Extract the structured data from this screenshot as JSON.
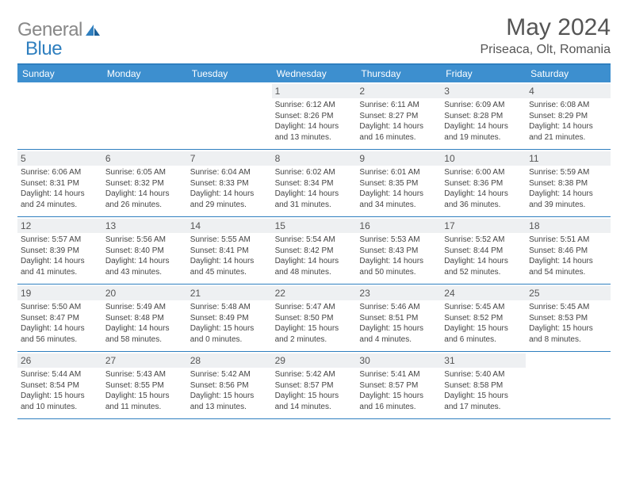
{
  "logo": {
    "part1": "General",
    "part2": "Blue"
  },
  "title": "May 2024",
  "location": "Priseaca, Olt, Romania",
  "colors": {
    "header_bar": "#3d8fcf",
    "border": "#2f7fbf",
    "daynum_bg": "#eef0f2",
    "text": "#444444",
    "logo_gray": "#888888",
    "logo_blue": "#2f7fbf"
  },
  "weekdays": [
    "Sunday",
    "Monday",
    "Tuesday",
    "Wednesday",
    "Thursday",
    "Friday",
    "Saturday"
  ],
  "weeks": [
    [
      {
        "n": "",
        "empty": true
      },
      {
        "n": "",
        "empty": true
      },
      {
        "n": "",
        "empty": true
      },
      {
        "n": "1",
        "sunrise": "Sunrise: 6:12 AM",
        "sunset": "Sunset: 8:26 PM",
        "day1": "Daylight: 14 hours",
        "day2": "and 13 minutes."
      },
      {
        "n": "2",
        "sunrise": "Sunrise: 6:11 AM",
        "sunset": "Sunset: 8:27 PM",
        "day1": "Daylight: 14 hours",
        "day2": "and 16 minutes."
      },
      {
        "n": "3",
        "sunrise": "Sunrise: 6:09 AM",
        "sunset": "Sunset: 8:28 PM",
        "day1": "Daylight: 14 hours",
        "day2": "and 19 minutes."
      },
      {
        "n": "4",
        "sunrise": "Sunrise: 6:08 AM",
        "sunset": "Sunset: 8:29 PM",
        "day1": "Daylight: 14 hours",
        "day2": "and 21 minutes."
      }
    ],
    [
      {
        "n": "5",
        "sunrise": "Sunrise: 6:06 AM",
        "sunset": "Sunset: 8:31 PM",
        "day1": "Daylight: 14 hours",
        "day2": "and 24 minutes."
      },
      {
        "n": "6",
        "sunrise": "Sunrise: 6:05 AM",
        "sunset": "Sunset: 8:32 PM",
        "day1": "Daylight: 14 hours",
        "day2": "and 26 minutes."
      },
      {
        "n": "7",
        "sunrise": "Sunrise: 6:04 AM",
        "sunset": "Sunset: 8:33 PM",
        "day1": "Daylight: 14 hours",
        "day2": "and 29 minutes."
      },
      {
        "n": "8",
        "sunrise": "Sunrise: 6:02 AM",
        "sunset": "Sunset: 8:34 PM",
        "day1": "Daylight: 14 hours",
        "day2": "and 31 minutes."
      },
      {
        "n": "9",
        "sunrise": "Sunrise: 6:01 AM",
        "sunset": "Sunset: 8:35 PM",
        "day1": "Daylight: 14 hours",
        "day2": "and 34 minutes."
      },
      {
        "n": "10",
        "sunrise": "Sunrise: 6:00 AM",
        "sunset": "Sunset: 8:36 PM",
        "day1": "Daylight: 14 hours",
        "day2": "and 36 minutes."
      },
      {
        "n": "11",
        "sunrise": "Sunrise: 5:59 AM",
        "sunset": "Sunset: 8:38 PM",
        "day1": "Daylight: 14 hours",
        "day2": "and 39 minutes."
      }
    ],
    [
      {
        "n": "12",
        "sunrise": "Sunrise: 5:57 AM",
        "sunset": "Sunset: 8:39 PM",
        "day1": "Daylight: 14 hours",
        "day2": "and 41 minutes."
      },
      {
        "n": "13",
        "sunrise": "Sunrise: 5:56 AM",
        "sunset": "Sunset: 8:40 PM",
        "day1": "Daylight: 14 hours",
        "day2": "and 43 minutes."
      },
      {
        "n": "14",
        "sunrise": "Sunrise: 5:55 AM",
        "sunset": "Sunset: 8:41 PM",
        "day1": "Daylight: 14 hours",
        "day2": "and 45 minutes."
      },
      {
        "n": "15",
        "sunrise": "Sunrise: 5:54 AM",
        "sunset": "Sunset: 8:42 PM",
        "day1": "Daylight: 14 hours",
        "day2": "and 48 minutes."
      },
      {
        "n": "16",
        "sunrise": "Sunrise: 5:53 AM",
        "sunset": "Sunset: 8:43 PM",
        "day1": "Daylight: 14 hours",
        "day2": "and 50 minutes."
      },
      {
        "n": "17",
        "sunrise": "Sunrise: 5:52 AM",
        "sunset": "Sunset: 8:44 PM",
        "day1": "Daylight: 14 hours",
        "day2": "and 52 minutes."
      },
      {
        "n": "18",
        "sunrise": "Sunrise: 5:51 AM",
        "sunset": "Sunset: 8:46 PM",
        "day1": "Daylight: 14 hours",
        "day2": "and 54 minutes."
      }
    ],
    [
      {
        "n": "19",
        "sunrise": "Sunrise: 5:50 AM",
        "sunset": "Sunset: 8:47 PM",
        "day1": "Daylight: 14 hours",
        "day2": "and 56 minutes."
      },
      {
        "n": "20",
        "sunrise": "Sunrise: 5:49 AM",
        "sunset": "Sunset: 8:48 PM",
        "day1": "Daylight: 14 hours",
        "day2": "and 58 minutes."
      },
      {
        "n": "21",
        "sunrise": "Sunrise: 5:48 AM",
        "sunset": "Sunset: 8:49 PM",
        "day1": "Daylight: 15 hours",
        "day2": "and 0 minutes."
      },
      {
        "n": "22",
        "sunrise": "Sunrise: 5:47 AM",
        "sunset": "Sunset: 8:50 PM",
        "day1": "Daylight: 15 hours",
        "day2": "and 2 minutes."
      },
      {
        "n": "23",
        "sunrise": "Sunrise: 5:46 AM",
        "sunset": "Sunset: 8:51 PM",
        "day1": "Daylight: 15 hours",
        "day2": "and 4 minutes."
      },
      {
        "n": "24",
        "sunrise": "Sunrise: 5:45 AM",
        "sunset": "Sunset: 8:52 PM",
        "day1": "Daylight: 15 hours",
        "day2": "and 6 minutes."
      },
      {
        "n": "25",
        "sunrise": "Sunrise: 5:45 AM",
        "sunset": "Sunset: 8:53 PM",
        "day1": "Daylight: 15 hours",
        "day2": "and 8 minutes."
      }
    ],
    [
      {
        "n": "26",
        "sunrise": "Sunrise: 5:44 AM",
        "sunset": "Sunset: 8:54 PM",
        "day1": "Daylight: 15 hours",
        "day2": "and 10 minutes."
      },
      {
        "n": "27",
        "sunrise": "Sunrise: 5:43 AM",
        "sunset": "Sunset: 8:55 PM",
        "day1": "Daylight: 15 hours",
        "day2": "and 11 minutes."
      },
      {
        "n": "28",
        "sunrise": "Sunrise: 5:42 AM",
        "sunset": "Sunset: 8:56 PM",
        "day1": "Daylight: 15 hours",
        "day2": "and 13 minutes."
      },
      {
        "n": "29",
        "sunrise": "Sunrise: 5:42 AM",
        "sunset": "Sunset: 8:57 PM",
        "day1": "Daylight: 15 hours",
        "day2": "and 14 minutes."
      },
      {
        "n": "30",
        "sunrise": "Sunrise: 5:41 AM",
        "sunset": "Sunset: 8:57 PM",
        "day1": "Daylight: 15 hours",
        "day2": "and 16 minutes."
      },
      {
        "n": "31",
        "sunrise": "Sunrise: 5:40 AM",
        "sunset": "Sunset: 8:58 PM",
        "day1": "Daylight: 15 hours",
        "day2": "and 17 minutes."
      },
      {
        "n": "",
        "empty": true
      }
    ]
  ]
}
